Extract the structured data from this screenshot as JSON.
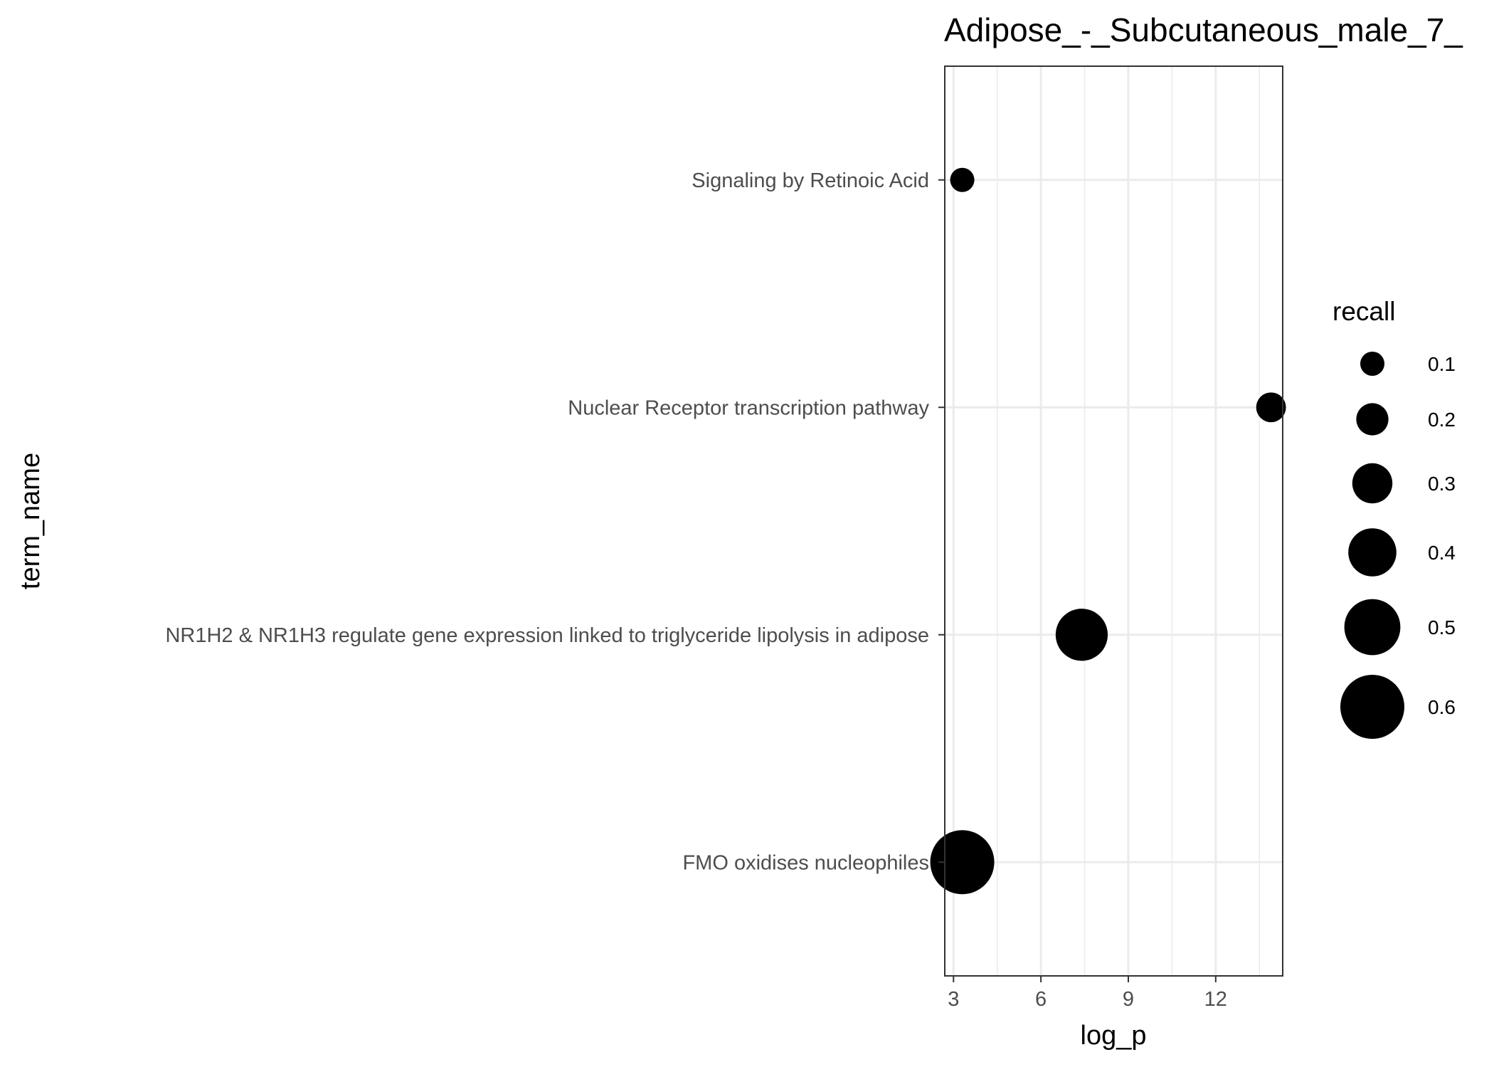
{
  "chart_data": {
    "type": "scatter",
    "title": "Adipose_-_Subcutaneous_male_7_",
    "xlabel": "log_p",
    "ylabel": "term_name",
    "xlim": [
      2.7,
      14.3
    ],
    "x_ticks": [
      3,
      6,
      9,
      12
    ],
    "categories": [
      "Signaling by Retinoic Acid",
      "Nuclear Receptor transcription pathway",
      "NR1H2 & NR1H3 regulate gene expression linked to triglyceride lipolysis in adipose",
      "FMO oxidises nucleophiles"
    ],
    "points": [
      {
        "term": "Signaling by Retinoic Acid",
        "log_p": 3.3,
        "recall": 0.1
      },
      {
        "term": "Nuclear Receptor transcription pathway",
        "log_p": 13.9,
        "recall": 0.17
      },
      {
        "term": "NR1H2 & NR1H3 regulate gene expression linked to triglyceride lipolysis in adipose",
        "log_p": 7.4,
        "recall": 0.45
      },
      {
        "term": "FMO oxidises nucleophiles",
        "log_p": 3.3,
        "recall": 0.6
      }
    ],
    "size_legend": {
      "title": "recall",
      "values": [
        0.1,
        0.2,
        0.3,
        0.4,
        0.5,
        0.6
      ],
      "labels": [
        "0.1",
        "0.2",
        "0.3",
        "0.4",
        "0.5",
        "0.6"
      ]
    },
    "grid": true,
    "legend_position": "right",
    "point_color": "#000000"
  }
}
